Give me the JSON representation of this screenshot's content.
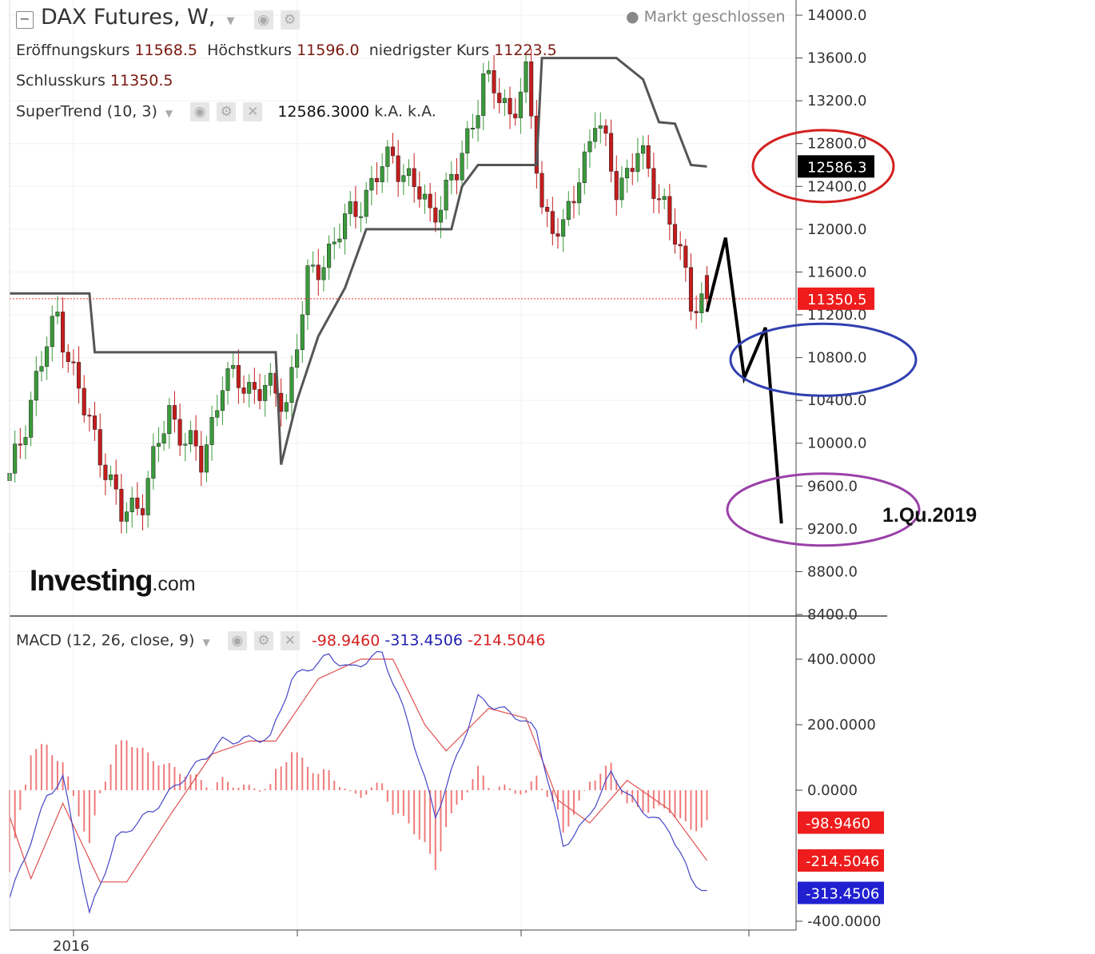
{
  "header": {
    "title": "DAX Futures, W,",
    "status": "Markt geschlossen",
    "open_label": "Eröffnungskurs",
    "open_value": "11568.5",
    "high_label": "Höchstkurs",
    "high_value": "11596.0",
    "low_label": "niedrigster Kurs",
    "low_value": "11223.5",
    "close_label": "Schlusskurs",
    "close_value": "11350.5"
  },
  "indicators": {
    "supertrend_label": "SuperTrend (10, 3)",
    "supertrend_value": "12586.3000",
    "supertrend_na1": "k.A.",
    "supertrend_na2": "k.A.",
    "macd_label": "MACD (12, 26, close, 9)",
    "macd_v1": "-98.9460",
    "macd_v2": "-313.4506",
    "macd_v3": "-214.5046"
  },
  "logo": {
    "bold": "Investing",
    "suffix": ".com"
  },
  "annotation": "1.Qu.2019",
  "colors": {
    "up": "#3a9a3a",
    "down": "#c41c1c",
    "supertrend": "#555555",
    "macd": "#4646c8",
    "signal": "#e05050",
    "hist": "#f07a7a",
    "red_ellipse": "#d42020",
    "blue_ellipse": "#3040b0",
    "purple_ellipse": "#9a40a8",
    "price_tag": "#ee1c1c",
    "st_tag": "#000000",
    "macd_tag": "#2020d0"
  },
  "chart_data": [
    {
      "type": "candlestick",
      "title": "DAX Futures, W,",
      "ylim": [
        8400,
        14000
      ],
      "y_ticks": [
        "14000.0",
        "13600.0",
        "13200.0",
        "12800.0",
        "12400.0",
        "12000.0",
        "11600.0",
        "11200.0",
        "10800.0",
        "10400.0",
        "10000.0",
        "9600.0",
        "9200.0",
        "8800.0",
        "8400.0"
      ],
      "x_tick_labels": [
        "2016"
      ],
      "last_price_tag": "11350.5",
      "supertrend_tag": "12586.3",
      "price_anchors": [
        {
          "week": 0,
          "close": 9650
        },
        {
          "week": 5,
          "close": 10600
        },
        {
          "week": 9,
          "close": 11200
        },
        {
          "week": 14,
          "close": 10300
        },
        {
          "week": 18,
          "close": 9800
        },
        {
          "week": 21,
          "close": 9300
        },
        {
          "week": 25,
          "close": 9500
        },
        {
          "week": 30,
          "close": 10300
        },
        {
          "week": 36,
          "close": 9800
        },
        {
          "week": 40,
          "close": 10600
        },
        {
          "week": 48,
          "close": 10500
        },
        {
          "week": 52,
          "close": 10400
        },
        {
          "week": 56,
          "close": 11500
        },
        {
          "week": 65,
          "close": 12200
        },
        {
          "week": 72,
          "close": 12700
        },
        {
          "week": 79,
          "close": 12150
        },
        {
          "week": 84,
          "close": 12500
        },
        {
          "week": 89,
          "close": 13400
        },
        {
          "week": 94,
          "close": 13100
        },
        {
          "week": 97,
          "close": 13400
        },
        {
          "week": 100,
          "close": 12200
        },
        {
          "week": 104,
          "close": 11950
        },
        {
          "week": 110,
          "close": 13050
        },
        {
          "week": 114,
          "close": 12400
        },
        {
          "week": 118,
          "close": 12700
        },
        {
          "week": 123,
          "close": 12250
        },
        {
          "week": 125,
          "close": 11900
        },
        {
          "week": 128,
          "close": 11350
        },
        {
          "week": 131,
          "close": 11350
        }
      ],
      "supertrend": [
        {
          "week": 0,
          "value": 11400
        },
        {
          "week": 15,
          "value": 11400
        },
        {
          "week": 16,
          "value": 10850
        },
        {
          "week": 50,
          "value": 10850
        },
        {
          "week": 51,
          "value": 9800
        },
        {
          "week": 54,
          "value": 10400
        },
        {
          "week": 58,
          "value": 11000
        },
        {
          "week": 63,
          "value": 11450
        },
        {
          "week": 67,
          "value": 12000
        },
        {
          "week": 74,
          "value": 12000
        },
        {
          "week": 83,
          "value": 12000
        },
        {
          "week": 85,
          "value": 12400
        },
        {
          "week": 88,
          "value": 12600
        },
        {
          "week": 99,
          "value": 12600
        },
        {
          "week": 100,
          "value": 13600
        },
        {
          "week": 114,
          "value": 13600
        },
        {
          "week": 119,
          "value": 13400
        },
        {
          "week": 122,
          "value": 13000
        },
        {
          "week": 125,
          "value": 12986
        },
        {
          "week": 128,
          "value": 12600
        },
        {
          "week": 131,
          "value": 12586.3
        }
      ],
      "forecast_path": [
        {
          "week": 131,
          "value": 11230
        },
        {
          "week": 134.5,
          "value": 11920
        },
        {
          "week": 138,
          "value": 10610
        },
        {
          "week": 142,
          "value": 11080
        },
        {
          "week": 145,
          "value": 9250
        }
      ],
      "target_zones": [
        {
          "name": "red",
          "center": 12590,
          "week": 141
        },
        {
          "name": "blue",
          "center": 10780,
          "week": 141
        },
        {
          "name": "purple",
          "center": 9380,
          "week": 141
        }
      ],
      "annotation_text": "1.Qu.2019"
    },
    {
      "type": "macd",
      "ylim": [
        -430,
        480
      ],
      "y_ticks": [
        "400.0000",
        "200.0000",
        "0.0000",
        "-400.0000"
      ],
      "value_tags": [
        "-98.9460",
        "-214.5046",
        "-313.4506"
      ],
      "macd_anchors": [
        {
          "week": 0,
          "value": -330
        },
        {
          "week": 7,
          "value": -20
        },
        {
          "week": 10,
          "value": 40
        },
        {
          "week": 15,
          "value": -380
        },
        {
          "week": 20,
          "value": -150
        },
        {
          "week": 27,
          "value": -60
        },
        {
          "week": 34,
          "value": 60
        },
        {
          "week": 40,
          "value": 150
        },
        {
          "week": 49,
          "value": 160
        },
        {
          "week": 53,
          "value": 340
        },
        {
          "week": 60,
          "value": 410
        },
        {
          "week": 64,
          "value": 370
        },
        {
          "week": 70,
          "value": 420
        },
        {
          "week": 75,
          "value": 200
        },
        {
          "week": 80,
          "value": -80
        },
        {
          "week": 88,
          "value": 280
        },
        {
          "week": 96,
          "value": 220
        },
        {
          "week": 99,
          "value": 180
        },
        {
          "week": 104,
          "value": -170
        },
        {
          "week": 108,
          "value": -100
        },
        {
          "week": 113,
          "value": 50
        },
        {
          "week": 118,
          "value": -50
        },
        {
          "week": 124,
          "value": -120
        },
        {
          "week": 128,
          "value": -270
        },
        {
          "week": 131,
          "value": -313.45
        }
      ],
      "signal_anchors": [
        {
          "week": 0,
          "value": -80
        },
        {
          "week": 4,
          "value": -270
        },
        {
          "week": 10,
          "value": -40
        },
        {
          "week": 17,
          "value": -280
        },
        {
          "week": 22,
          "value": -280
        },
        {
          "week": 30,
          "value": -80
        },
        {
          "week": 38,
          "value": 110
        },
        {
          "week": 45,
          "value": 150
        },
        {
          "week": 50,
          "value": 150
        },
        {
          "week": 58,
          "value": 340
        },
        {
          "week": 66,
          "value": 400
        },
        {
          "week": 72,
          "value": 400
        },
        {
          "week": 78,
          "value": 200
        },
        {
          "week": 82,
          "value": 120
        },
        {
          "week": 90,
          "value": 250
        },
        {
          "week": 97,
          "value": 220
        },
        {
          "week": 103,
          "value": -30
        },
        {
          "week": 109,
          "value": -100
        },
        {
          "week": 116,
          "value": 30
        },
        {
          "week": 124,
          "value": -60
        },
        {
          "week": 131,
          "value": -214.5
        }
      ]
    }
  ]
}
